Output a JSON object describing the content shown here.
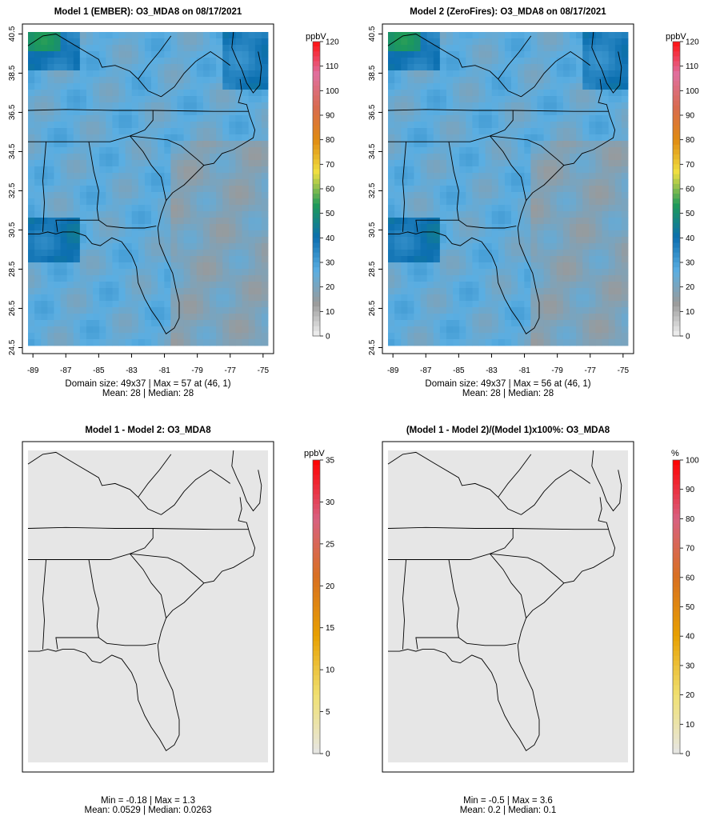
{
  "panels": [
    {
      "id": "model1",
      "title": "Model 1 (EMBER): O3_MDA8 on 08/17/2021",
      "kind": "absolute",
      "show_axes": true,
      "x_ticks": [
        "-89",
        "-87",
        "-85",
        "-83",
        "-81",
        "-79",
        "-77",
        "-75"
      ],
      "y_ticks": [
        "24.5",
        "26.5",
        "28.5",
        "30.5",
        "32.5",
        "34.5",
        "36.5",
        "38.5",
        "40.5"
      ],
      "stats_line1": "Domain size: 49x37 | Max = 57 at (46, 1)",
      "stats_line2": "Mean: 28 |  Median: 28",
      "colorbar": {
        "unit": "ppbV",
        "ticks": [
          "0",
          "10",
          "20",
          "30",
          "40",
          "50",
          "60",
          "70",
          "80",
          "90",
          "100",
          "110",
          "120"
        ],
        "min": 0,
        "max": 120
      }
    },
    {
      "id": "model2",
      "title": "Model 2 (ZeroFires): O3_MDA8 on 08/17/2021",
      "kind": "absolute",
      "show_axes": true,
      "x_ticks": [
        "-89",
        "-87",
        "-85",
        "-83",
        "-81",
        "-79",
        "-77",
        "-75"
      ],
      "y_ticks": [
        "24.5",
        "26.5",
        "28.5",
        "30.5",
        "32.5",
        "34.5",
        "36.5",
        "38.5",
        "40.5"
      ],
      "stats_line1": "Domain size: 49x37 | Max = 56 at (46, 1)",
      "stats_line2": "Mean: 28 |  Median: 28",
      "colorbar": {
        "unit": "ppbV",
        "ticks": [
          "0",
          "10",
          "20",
          "30",
          "40",
          "50",
          "60",
          "70",
          "80",
          "90",
          "100",
          "110",
          "120"
        ],
        "min": 0,
        "max": 120
      }
    },
    {
      "id": "diff",
      "title": "Model 1 - Model 2: O3_MDA8",
      "kind": "difference",
      "show_axes": false,
      "stats_line1": "Min = -0.18 | Max = 1.3",
      "stats_line2": "Mean: 0.0529 |  Median: 0.0263",
      "colorbar": {
        "unit": "ppbV",
        "ticks": [
          "0",
          "5",
          "10",
          "15",
          "20",
          "25",
          "30",
          "35"
        ],
        "min": 0,
        "max": 35
      }
    },
    {
      "id": "pctdiff",
      "title": "(Model 1 - Model 2)/(Model 1)x100%: O3_MDA8",
      "kind": "difference",
      "show_axes": false,
      "stats_line1": "Min = -0.5 | Max = 3.6",
      "stats_line2": "Mean: 0.2 |  Median: 0.1",
      "colorbar": {
        "unit": "%",
        "ticks": [
          "0",
          "10",
          "20",
          "30",
          "40",
          "50",
          "60",
          "70",
          "80",
          "90",
          "100"
        ],
        "min": 0,
        "max": 100
      }
    }
  ],
  "colors": {
    "diff_background": "#e6e6e6",
    "abs_ramp": [
      "#f2f2f2",
      "#9a9a9a",
      "#5aaee2",
      "#0c6fb0",
      "#1e9a5a",
      "#f0e040",
      "#e08a10",
      "#d86a50",
      "#e070a0",
      "#ff1010"
    ],
    "diff_ramp": [
      "#e6e6e6",
      "#f0e070",
      "#e8a000",
      "#d87020",
      "#d86080",
      "#ff0000"
    ]
  },
  "chart_data": [
    {
      "type": "heatmap",
      "title": "Model 1 (EMBER): O3_MDA8 on 08/17/2021",
      "xlim": [
        -89,
        -75
      ],
      "ylim": [
        24.5,
        40.5
      ],
      "grid_size": "49x37",
      "max": 57,
      "max_location": [
        46,
        1
      ],
      "mean": 28,
      "median": 28,
      "colorbar_unit": "ppbV",
      "colorbar_range": [
        0,
        120
      ]
    },
    {
      "type": "heatmap",
      "title": "Model 2 (ZeroFires): O3_MDA8 on 08/17/2021",
      "xlim": [
        -89,
        -75
      ],
      "ylim": [
        24.5,
        40.5
      ],
      "grid_size": "49x37",
      "max": 56,
      "max_location": [
        46,
        1
      ],
      "mean": 28,
      "median": 28,
      "colorbar_unit": "ppbV",
      "colorbar_range": [
        0,
        120
      ]
    },
    {
      "type": "heatmap",
      "title": "Model 1 - Model 2: O3_MDA8",
      "min": -0.18,
      "max": 1.3,
      "mean": 0.0529,
      "median": 0.0263,
      "colorbar_unit": "ppbV",
      "colorbar_range": [
        0,
        35
      ]
    },
    {
      "type": "heatmap",
      "title": "(Model 1 - Model 2)/(Model 1)x100%: O3_MDA8",
      "min": -0.5,
      "max": 3.6,
      "mean": 0.2,
      "median": 0.1,
      "colorbar_unit": "%",
      "colorbar_range": [
        0,
        100
      ]
    }
  ]
}
